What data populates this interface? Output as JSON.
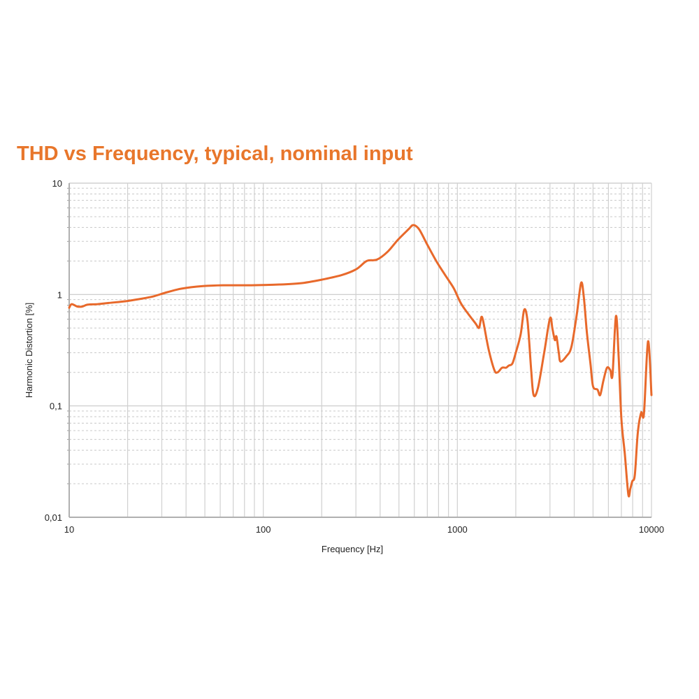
{
  "chart_data": {
    "type": "line",
    "title": "THD vs Frequency, typical, nominal input",
    "xlabel": "Frequency [Hz]",
    "ylabel": "Harmonic Distortion [%]",
    "xscale": "log",
    "yscale": "log",
    "xlim": [
      10,
      10000
    ],
    "ylim": [
      0.01,
      10
    ],
    "x_ticks": [
      10,
      100,
      1000,
      10000
    ],
    "x_tick_labels": [
      "10",
      "100",
      "1000",
      "10000"
    ],
    "y_ticks": [
      10,
      1,
      0.1,
      0.01
    ],
    "y_tick_labels": [
      "10",
      "1",
      "0,1",
      "0,01"
    ],
    "grid": true,
    "legend": "none",
    "color": "#e8692b",
    "series": [
      {
        "name": "THD",
        "x": [
          10,
          10.3,
          11,
          11.7,
          12.4,
          14,
          16,
          19.5,
          23,
          27,
          32,
          38,
          49,
          62,
          87,
          121,
          155,
          200,
          255,
          302,
          341,
          386,
          437,
          494,
          560,
          593,
          635,
          700,
          785,
          887,
          960,
          1040,
          1130,
          1240,
          1288,
          1310,
          1330,
          1360,
          1450,
          1550,
          1610,
          1700,
          1780,
          1840,
          1920,
          2010,
          2120,
          2210,
          2300,
          2400,
          2470,
          2600,
          2800,
          3000,
          3090,
          3180,
          3240,
          3330,
          3400,
          3650,
          3870,
          4120,
          4340,
          4480,
          4650,
          4850,
          5000,
          5270,
          5440,
          5660,
          5900,
          6130,
          6300,
          6560,
          6770,
          7000,
          7290,
          7600,
          7780,
          7960,
          8210,
          8500,
          8850,
          9150,
          9600,
          10000
        ],
        "y": [
          0.76,
          0.82,
          0.78,
          0.78,
          0.81,
          0.82,
          0.84,
          0.87,
          0.91,
          0.96,
          1.05,
          1.13,
          1.19,
          1.21,
          1.21,
          1.23,
          1.26,
          1.36,
          1.5,
          1.69,
          2.0,
          2.06,
          2.42,
          3.1,
          3.85,
          4.2,
          3.85,
          2.8,
          1.95,
          1.4,
          1.13,
          0.84,
          0.68,
          0.55,
          0.5,
          0.55,
          0.63,
          0.57,
          0.32,
          0.21,
          0.2,
          0.22,
          0.22,
          0.23,
          0.24,
          0.31,
          0.44,
          0.73,
          0.57,
          0.21,
          0.125,
          0.145,
          0.3,
          0.61,
          0.49,
          0.39,
          0.42,
          0.3,
          0.25,
          0.28,
          0.34,
          0.66,
          1.27,
          0.95,
          0.45,
          0.24,
          0.15,
          0.14,
          0.125,
          0.17,
          0.22,
          0.21,
          0.19,
          0.64,
          0.28,
          0.076,
          0.037,
          0.016,
          0.018,
          0.021,
          0.024,
          0.057,
          0.087,
          0.086,
          0.38,
          0.125
        ]
      }
    ]
  }
}
